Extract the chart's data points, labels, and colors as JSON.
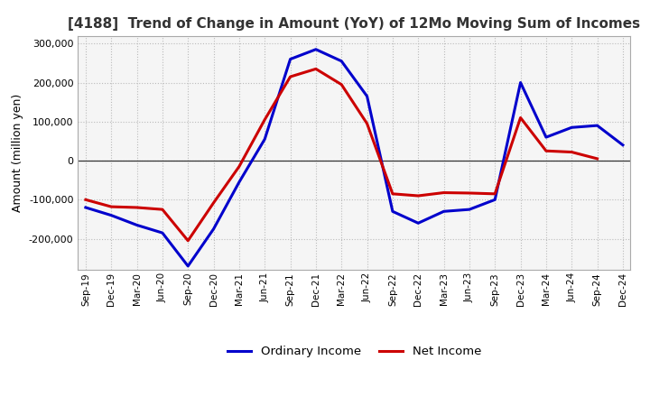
{
  "title": "[4188]  Trend of Change in Amount (YoY) of 12Mo Moving Sum of Incomes",
  "ylabel": "Amount (million yen)",
  "xlabels": [
    "Sep-19",
    "Dec-19",
    "Mar-20",
    "Jun-20",
    "Sep-20",
    "Dec-20",
    "Mar-21",
    "Jun-21",
    "Sep-21",
    "Dec-21",
    "Mar-22",
    "Jun-22",
    "Sep-22",
    "Dec-22",
    "Mar-23",
    "Jun-23",
    "Sep-23",
    "Dec-23",
    "Mar-24",
    "Jun-24",
    "Sep-24",
    "Dec-24"
  ],
  "ordinary_income": [
    -120000,
    -140000,
    -165000,
    -185000,
    -270000,
    -175000,
    -55000,
    55000,
    260000,
    285000,
    255000,
    165000,
    -130000,
    -160000,
    -130000,
    -125000,
    -100000,
    200000,
    60000,
    85000,
    90000,
    40000
  ],
  "net_income": [
    -100000,
    -118000,
    -120000,
    -125000,
    -205000,
    -108000,
    -15000,
    105000,
    215000,
    235000,
    195000,
    95000,
    -85000,
    -90000,
    -82000,
    -83000,
    -85000,
    110000,
    25000,
    22000,
    5000,
    null
  ],
  "ordinary_color": "#0000cc",
  "net_color": "#cc0000",
  "ylim": [
    -280000,
    320000
  ],
  "yticks": [
    -200000,
    -100000,
    0,
    100000,
    200000,
    300000
  ],
  "background_color": "#ffffff",
  "plot_bg_color": "#f5f5f5",
  "grid_color": "#bbbbbb"
}
